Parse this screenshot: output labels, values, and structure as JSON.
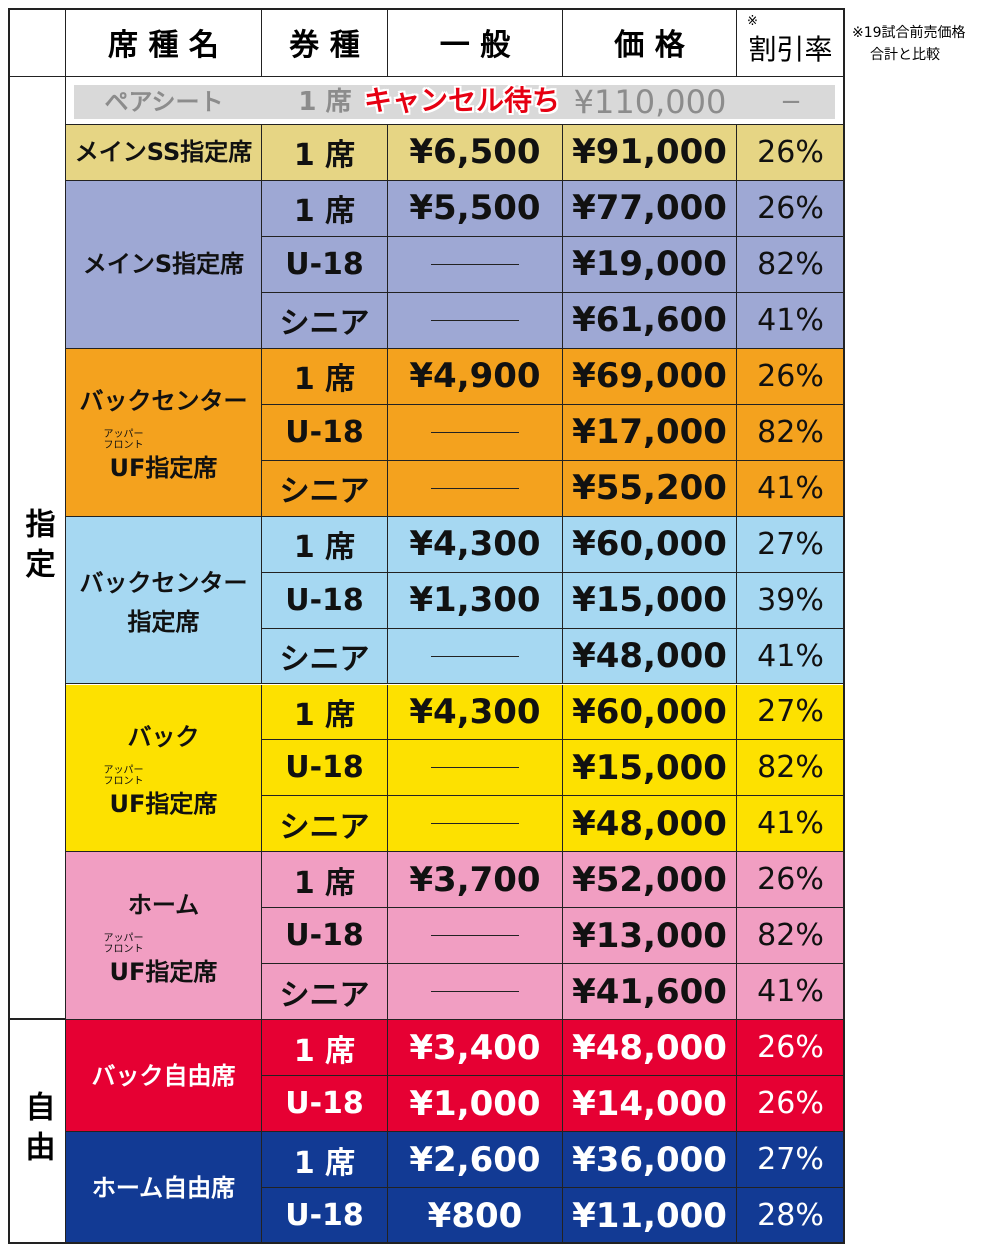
{
  "header": {
    "columns": [
      "席 種 名",
      "券 種",
      "一 般",
      "価 格",
      "割引率"
    ],
    "discount_mark": "※",
    "note": [
      "※19試合前売価格",
      "合計と比較"
    ]
  },
  "pair_row": {
    "name": "ペアシート",
    "type": "1 席",
    "status": "キャンセル待ち",
    "price": "¥110,000",
    "discount": "−"
  },
  "sections": [
    {
      "label": "指定",
      "groups": [
        {
          "name": [
            "メインSS指定席"
          ],
          "color": "#e6d584",
          "text_color": "#111",
          "rows": [
            {
              "type": "1 席",
              "general": "¥6,500",
              "price": "¥91,000",
              "discount": "26%"
            }
          ]
        },
        {
          "name": [
            "メインS指定席"
          ],
          "color": "#9ea8d4",
          "text_color": "#111",
          "rows": [
            {
              "type": "1 席",
              "general": "¥5,500",
              "price": "¥77,000",
              "discount": "26%"
            },
            {
              "type": "U-18",
              "price": "¥19,000",
              "discount": "82%"
            },
            {
              "type": "シニア",
              "price": "¥61,600",
              "discount": "41%"
            }
          ]
        },
        {
          "name": [
            "バックセンター",
            "UF指定席"
          ],
          "ruby": [
            "アッパー",
            "フロント"
          ],
          "color": "#f4a21e",
          "text_color": "#111",
          "rows": [
            {
              "type": "1 席",
              "general": "¥4,900",
              "price": "¥69,000",
              "discount": "26%"
            },
            {
              "type": "U-18",
              "price": "¥17,000",
              "discount": "82%"
            },
            {
              "type": "シニア",
              "price": "¥55,200",
              "discount": "41%"
            }
          ]
        },
        {
          "name": [
            "バックセンター",
            "指定席"
          ],
          "color": "#a6d8f2",
          "text_color": "#111",
          "rows": [
            {
              "type": "1 席",
              "general": "¥4,300",
              "price": "¥60,000",
              "discount": "27%"
            },
            {
              "type": "U-18",
              "general": "¥1,300",
              "price": "¥15,000",
              "discount": "39%"
            },
            {
              "type": "シニア",
              "price": "¥48,000",
              "discount": "41%"
            }
          ]
        },
        {
          "name": [
            "バック",
            "UF指定席"
          ],
          "ruby": [
            "アッパー",
            "フロント"
          ],
          "color": "#fde100",
          "text_color": "#111",
          "rows": [
            {
              "type": "1 席",
              "general": "¥4,300",
              "price": "¥60,000",
              "discount": "27%"
            },
            {
              "type": "U-18",
              "price": "¥15,000",
              "discount": "82%"
            },
            {
              "type": "シニア",
              "price": "¥48,000",
              "discount": "41%"
            }
          ]
        },
        {
          "name": [
            "ホーム",
            "UF指定席"
          ],
          "ruby": [
            "アッパー",
            "フロント"
          ],
          "color": "#f19ec2",
          "text_color": "#111",
          "rows": [
            {
              "type": "1 席",
              "general": "¥3,700",
              "price": "¥52,000",
              "discount": "26%"
            },
            {
              "type": "U-18",
              "price": "¥13,000",
              "discount": "82%"
            },
            {
              "type": "シニア",
              "price": "¥41,600",
              "discount": "41%"
            }
          ]
        }
      ]
    },
    {
      "label": "自由",
      "groups": [
        {
          "name": [
            "バック自由席"
          ],
          "color": "#e60033",
          "text_color": "#fff",
          "rows": [
            {
              "type": "1 席",
              "general": "¥3,400",
              "price": "¥48,000",
              "discount": "26%"
            },
            {
              "type": "U-18",
              "general": "¥1,000",
              "price": "¥14,000",
              "discount": "26%"
            }
          ]
        },
        {
          "name": [
            "ホーム自由席"
          ],
          "color": "#123a94",
          "text_color": "#fff",
          "rows": [
            {
              "type": "1 席",
              "general": "¥2,600",
              "price": "¥36,000",
              "discount": "27%"
            },
            {
              "type": "U-18",
              "general": "¥800",
              "price": "¥11,000",
              "discount": "28%"
            }
          ]
        }
      ]
    }
  ]
}
